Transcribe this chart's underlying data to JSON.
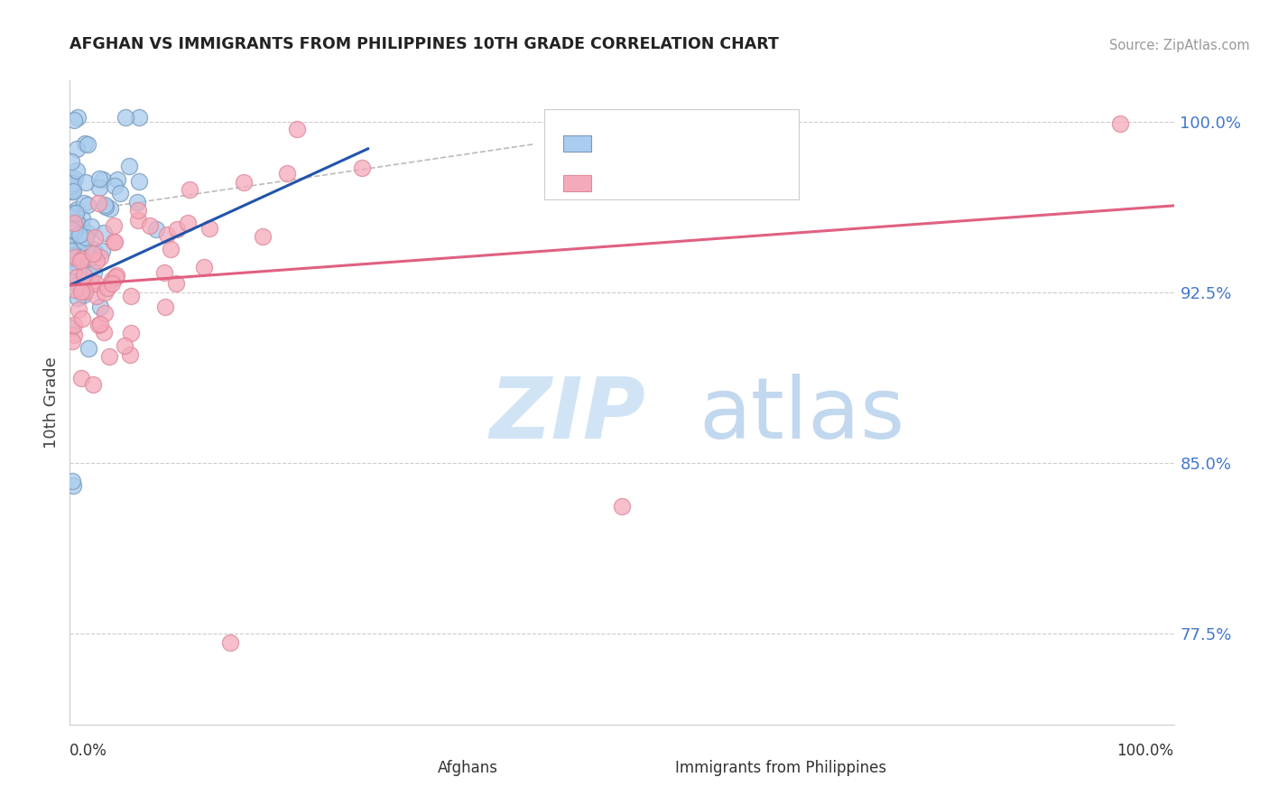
{
  "title": "AFGHAN VS IMMIGRANTS FROM PHILIPPINES 10TH GRADE CORRELATION CHART",
  "source": "Source: ZipAtlas.com",
  "ylabel": "10th Grade",
  "y_ticks": [
    0.775,
    0.85,
    0.925,
    1.0
  ],
  "y_tick_labels": [
    "77.5%",
    "85.0%",
    "92.5%",
    "100.0%"
  ],
  "x_range": [
    0.0,
    1.0
  ],
  "y_range": [
    0.735,
    1.018
  ],
  "blue_fill": "#aaccee",
  "blue_edge": "#7799bb",
  "pink_fill": "#f5aabb",
  "pink_edge": "#dd8899",
  "blue_line_color": "#2255aa",
  "pink_line_color": "#e06080",
  "dash_line_color": "#bbbbbb",
  "legend_blue_fill": "#aaccee",
  "legend_pink_fill": "#f5aabb",
  "legend_text_color": "#3366cc",
  "ytick_color": "#4477cc",
  "background_color": "#ffffff",
  "grid_color": "#cccccc",
  "watermark_zip_color": "#d0e4f5",
  "watermark_atlas_color": "#a8c8e8",
  "bottom_legend_text": "#333333"
}
